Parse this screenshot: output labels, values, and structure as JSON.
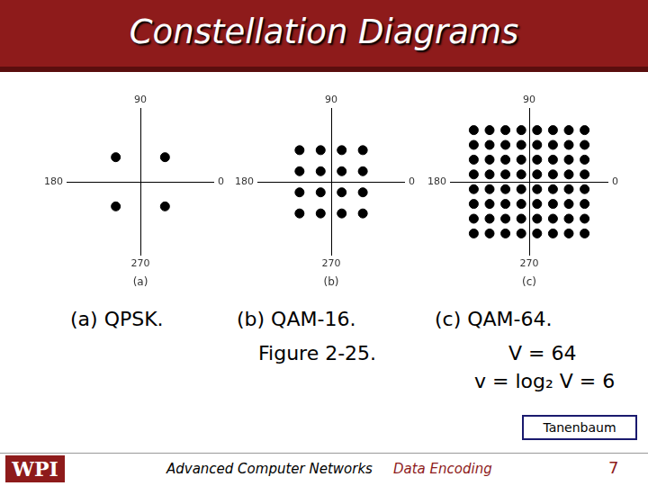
{
  "slide": {
    "title": "Constellation Diagrams",
    "captions": [
      "(a) QPSK.",
      "(b) QAM-16.",
      "Figure 2-25.",
      "(c) QAM-64.",
      "V = 64",
      "v = log₂ V = 6"
    ],
    "source_box": "Tanenbaum",
    "footer": {
      "logo": "WPI",
      "course": "Advanced Computer Networks",
      "topic": "Data Encoding",
      "page": "7"
    }
  },
  "chart_data": [
    {
      "type": "scatter",
      "annotations": {
        "top": "90",
        "bottom": "270",
        "left": "180",
        "right": "0",
        "panel": "(a)"
      },
      "x": [
        -1,
        1,
        -1,
        1
      ],
      "values": [
        1,
        1,
        -1,
        -1
      ],
      "color": "#000000",
      "marker": "circle",
      "xlim": [
        -3,
        3
      ],
      "ylim": [
        -3,
        3
      ],
      "xticks": [
        0
      ],
      "yticks": [
        0
      ],
      "grid": true,
      "tick_labels": false
    },
    {
      "type": "scatter",
      "annotations": {
        "top": "90",
        "bottom": "270",
        "left": "180",
        "right": "0",
        "panel": "(b)"
      },
      "x": [
        -3,
        -1,
        1,
        3,
        -3,
        -1,
        1,
        3,
        -3,
        -1,
        1,
        3,
        -3,
        -1,
        1,
        3
      ],
      "values": [
        3,
        3,
        3,
        3,
        1,
        1,
        1,
        1,
        -1,
        -1,
        -1,
        -1,
        -3,
        -3,
        -3,
        -3
      ],
      "color": "#000000",
      "marker": "circle",
      "xlim": [
        -7,
        7
      ],
      "ylim": [
        -7,
        7
      ],
      "xticks": [
        0
      ],
      "yticks": [
        0
      ],
      "grid": true,
      "tick_labels": false
    },
    {
      "type": "scatter",
      "annotations": {
        "top": "90",
        "bottom": "270",
        "left": "180",
        "right": "0",
        "panel": "(c)"
      },
      "x": [
        -7,
        -5,
        -3,
        -1,
        1,
        3,
        5,
        7,
        -7,
        -5,
        -3,
        -1,
        1,
        3,
        5,
        7,
        -7,
        -5,
        -3,
        -1,
        1,
        3,
        5,
        7,
        -7,
        -5,
        -3,
        -1,
        1,
        3,
        5,
        7,
        -7,
        -5,
        -3,
        -1,
        1,
        3,
        5,
        7,
        -7,
        -5,
        -3,
        -1,
        1,
        3,
        5,
        7,
        -7,
        -5,
        -3,
        -1,
        1,
        3,
        5,
        7,
        -7,
        -5,
        -3,
        -1,
        1,
        3,
        5,
        7
      ],
      "values": [
        7,
        7,
        7,
        7,
        7,
        7,
        7,
        7,
        5,
        5,
        5,
        5,
        5,
        5,
        5,
        5,
        3,
        3,
        3,
        3,
        3,
        3,
        3,
        3,
        1,
        1,
        1,
        1,
        1,
        1,
        1,
        1,
        -1,
        -1,
        -1,
        -1,
        -1,
        -1,
        -1,
        -1,
        -3,
        -3,
        -3,
        -3,
        -3,
        -3,
        -3,
        -3,
        -5,
        -5,
        -5,
        -5,
        -5,
        -5,
        -5,
        -5,
        -7,
        -7,
        -7,
        -7,
        -7,
        -7,
        -7,
        -7
      ],
      "color": "#000000",
      "marker": "circle",
      "xlim": [
        -10,
        10
      ],
      "ylim": [
        -10,
        10
      ],
      "xticks": [
        0
      ],
      "yticks": [
        0
      ],
      "grid": true,
      "tick_labels": false
    }
  ]
}
